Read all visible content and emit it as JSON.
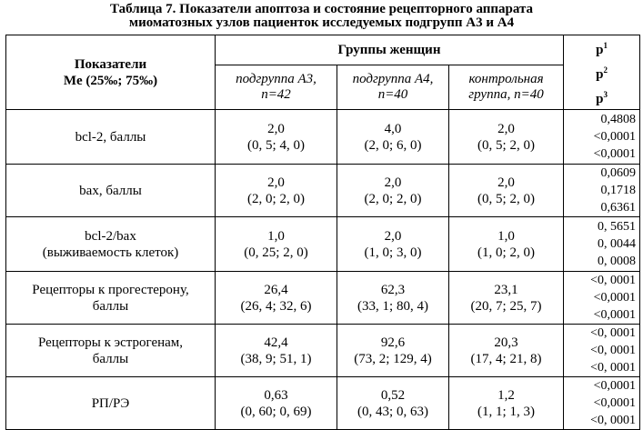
{
  "caption": {
    "line1": "Таблица 7. Показатели апоптоза и состояние рецепторного аппарата",
    "line2": "миоматозных узлов пациенток исследуемых подгрупп А3 и А4"
  },
  "header": {
    "indicator_line1": "Показатели",
    "indicator_line2": "Me (25‰; 75‰)",
    "groups": "Группы женщин",
    "sub1_line1": "подгруппа А3,",
    "sub1_line2": "n=42",
    "sub2_line1": "подгруппа А4,",
    "sub2_line2": "n=40",
    "sub3_line1": "контрольная",
    "sub3_line2": "группа, n=40",
    "p1": "p",
    "p1_sup": "1",
    "p2": "p",
    "p2_sup": "2",
    "p3": "p",
    "p3_sup": "3"
  },
  "rows": [
    {
      "label1": "bcl-2, баллы",
      "label2": "",
      "a3_me": "2,0",
      "a3_range": "(0, 5; 4, 0)",
      "a4_me": "4,0",
      "a4_range": "(2, 0; 6, 0)",
      "ctrl_me": "2,0",
      "ctrl_range": "(0, 5; 2, 0)",
      "p": [
        "0,4808",
        "<0,0001",
        "<0,0001"
      ]
    },
    {
      "label1": "bax, баллы",
      "label2": "",
      "a3_me": "2,0",
      "a3_range": "(2, 0; 2, 0)",
      "a4_me": "2,0",
      "a4_range": "(2, 0; 2, 0)",
      "ctrl_me": "2,0",
      "ctrl_range": "(0, 5; 2, 0)",
      "p": [
        "0,0609",
        "0,1718",
        "0,6361"
      ]
    },
    {
      "label1": "bcl-2/bax",
      "label2": "(выживаемость клеток)",
      "a3_me": "1,0",
      "a3_range": "(0, 25; 2, 0)",
      "a4_me": "2,0",
      "a4_range": "(1, 0; 3, 0)",
      "ctrl_me": "1,0",
      "ctrl_range": "(1, 0; 2, 0)",
      "p": [
        "0, 5651",
        "0, 0044",
        "0, 0008"
      ]
    },
    {
      "label1": "Рецепторы к прогестерону,",
      "label2": "баллы",
      "a3_me": "26,4",
      "a3_range": "(26, 4; 32, 6)",
      "a4_me": "62,3",
      "a4_range": "(33, 1; 80, 4)",
      "ctrl_me": "23,1",
      "ctrl_range": "(20, 7; 25, 7)",
      "p": [
        "<0, 0001",
        "<0,0001",
        "<0,0001"
      ]
    },
    {
      "label1": "Рецепторы к эстрогенам,",
      "label2": "баллы",
      "a3_me": "42,4",
      "a3_range": "(38, 9; 51, 1)",
      "a4_me": "92,6",
      "a4_range": "(73, 2; 129, 4)",
      "ctrl_me": "20,3",
      "ctrl_range": "(17, 4; 21, 8)",
      "p": [
        "<0, 0001",
        "<0, 0001",
        "<0, 0001"
      ]
    },
    {
      "label1": "РП/РЭ",
      "label2": "",
      "a3_me": "0,63",
      "a3_range": "(0, 60; 0, 69)",
      "a4_me": "0,52",
      "a4_range": "(0, 43; 0, 63)",
      "ctrl_me": "1,2",
      "ctrl_range": "(1, 1; 1, 3)",
      "p": [
        "<0,0001",
        "<0,0001",
        "<0, 0001"
      ]
    }
  ]
}
